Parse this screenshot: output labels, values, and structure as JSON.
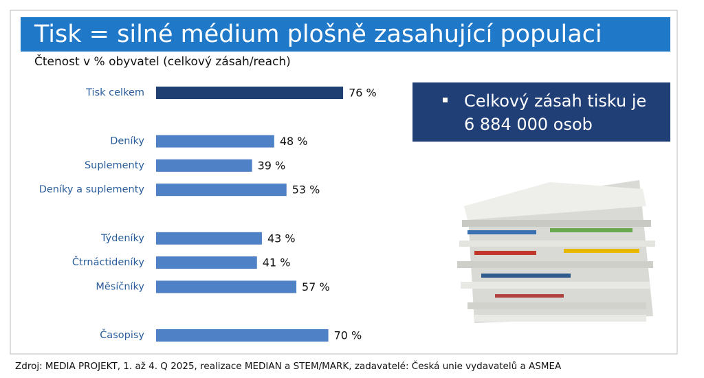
{
  "chart_data": {
    "type": "bar",
    "orientation": "horizontal",
    "title": "Tisk = silné médium plošně zasahující populaci",
    "subtitle": "Čtenost v % obyvatel (celkový zásah/reach)",
    "categories": [
      "Tisk celkem",
      null,
      "Deníky",
      "Suplementy",
      "Deníky a suplementy",
      null,
      "Týdeníky",
      "Čtrnáctideníky",
      "Měsíčníky",
      null,
      "Časopisy"
    ],
    "values": [
      76,
      null,
      48,
      39,
      53,
      null,
      43,
      41,
      57,
      null,
      70
    ],
    "value_labels": [
      "76 %",
      null,
      "48 %",
      "39 %",
      "53 %",
      null,
      "43 %",
      "41 %",
      "57 %",
      null,
      "70 %"
    ],
    "colors": [
      "#1f3f73",
      null,
      "#4f81c6",
      "#4f81c6",
      "#4f81c6",
      null,
      "#4f81c6",
      "#4f81c6",
      "#4f81c6",
      null,
      "#4f81c6"
    ],
    "callout": [
      "Celkový zásah tisku je",
      "6 884 000 osob"
    ],
    "source": "Zdroj: MEDIA PROJEKT, 1. až 4. Q 2025, realizace MEDIAN a STEM/MARK, zadavatelé: Česká unie vydavatelů a ASMEA"
  }
}
